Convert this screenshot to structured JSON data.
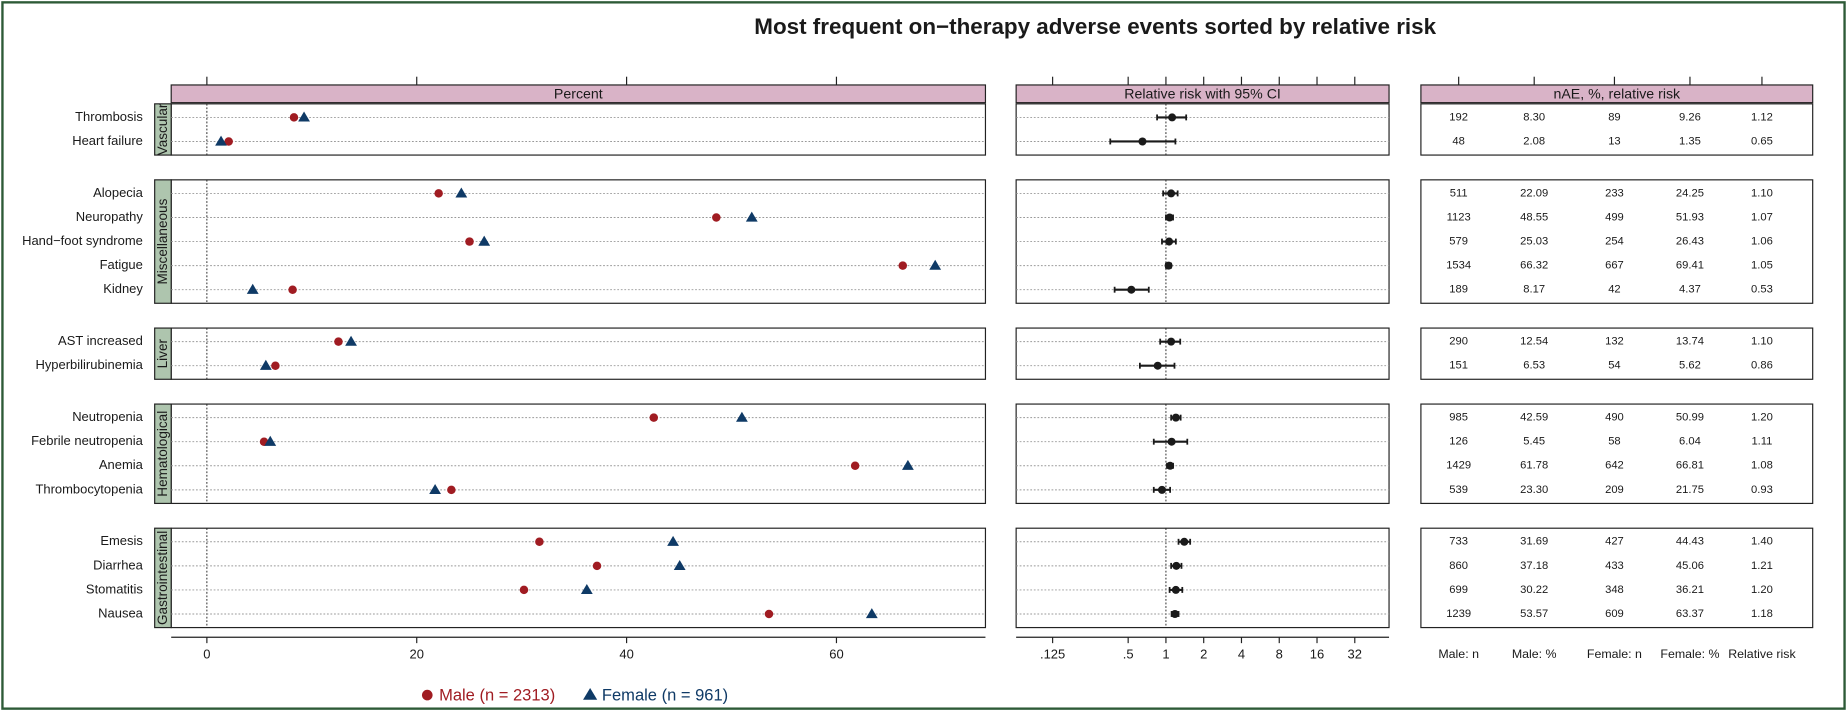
{
  "chart_data": {
    "type": "dot_forest_table",
    "title": "Most frequent on−therapy adverse events sorted by relative risk",
    "groups": [
      {
        "label": "Vascular",
        "categories": [
          "Thrombosis",
          "Heart failure"
        ]
      },
      {
        "label": "Miscellaneous",
        "categories": [
          "Alopecia",
          "Neuropathy",
          "Hand−foot syndrome",
          "Fatigue",
          "Kidney"
        ]
      },
      {
        "label": "Liver",
        "categories": [
          "AST increased",
          "Hyperbilirubinemia"
        ]
      },
      {
        "label": "Hematological",
        "categories": [
          "Neutropenia",
          "Febrile neutropenia",
          "Anemia",
          "Thrombocytopenia"
        ]
      },
      {
        "label": "Gastrointestinal",
        "categories": [
          "Emesis",
          "Diarrhea",
          "Stomatitis",
          "Nausea"
        ]
      }
    ],
    "percent": {
      "title": "Percent",
      "xlim": [
        -3.4,
        74.2
      ],
      "xticks": [
        0,
        20,
        40,
        60
      ],
      "reference": 0
    },
    "series": [
      {
        "name": "Male (n = 2313)",
        "color": "#a01c22",
        "marker": "circle",
        "counts": [
          192,
          48,
          511,
          1123,
          579,
          1534,
          189,
          290,
          151,
          985,
          126,
          1429,
          539,
          733,
          860,
          699,
          1239
        ],
        "values": [
          8.3,
          2.08,
          22.09,
          48.55,
          25.03,
          66.32,
          8.17,
          12.54,
          6.53,
          42.59,
          5.45,
          61.78,
          23.3,
          31.69,
          37.18,
          30.22,
          53.57
        ],
        "value_labels": [
          "8.30",
          "2.08",
          "22.09",
          "48.55",
          "25.03",
          "66.32",
          "8.17",
          "12.54",
          "6.53",
          "42.59",
          "5.45",
          "61.78",
          "23.30",
          "31.69",
          "37.18",
          "30.22",
          "53.57"
        ]
      },
      {
        "name": "Female (n = 961)",
        "color": "#0f3a66",
        "marker": "triangle",
        "counts": [
          89,
          13,
          233,
          499,
          254,
          667,
          42,
          132,
          54,
          490,
          58,
          642,
          209,
          427,
          433,
          348,
          609
        ],
        "values": [
          9.26,
          1.35,
          24.25,
          51.93,
          26.43,
          69.41,
          4.37,
          13.74,
          5.62,
          50.99,
          6.04,
          66.81,
          21.75,
          44.43,
          45.06,
          36.21,
          63.37
        ],
        "value_labels": [
          "9.26",
          "1.35",
          "24.25",
          "51.93",
          "26.43",
          "69.41",
          "4.37",
          "13.74",
          "5.62",
          "50.99",
          "6.04",
          "66.81",
          "21.75",
          "44.43",
          "45.06",
          "36.21",
          "63.37"
        ]
      }
    ],
    "relative_risk": {
      "title": "Relative risk with 95% CI",
      "log_scale": true,
      "xlim": [
        0.064,
        60
      ],
      "xticks": [
        {
          "value": 0.125,
          "label": ".125"
        },
        {
          "value": 0.5,
          "label": ".5"
        },
        1,
        2,
        4,
        8,
        16,
        32
      ],
      "reference": 1,
      "color": "#1a1a1a",
      "values": [
        1.12,
        0.65,
        1.1,
        1.07,
        1.06,
        1.05,
        0.53,
        1.1,
        0.86,
        1.2,
        1.11,
        1.08,
        0.93,
        1.4,
        1.21,
        1.2,
        1.18
      ],
      "value_labels": [
        "1.12",
        "0.65",
        "1.10",
        "1.07",
        "1.06",
        "1.05",
        "0.53",
        "1.10",
        "0.86",
        "1.20",
        "1.11",
        "1.08",
        "0.93",
        "1.40",
        "1.21",
        "1.20",
        "1.18"
      ],
      "ci_low": [
        0.85,
        0.36,
        0.95,
        1.0,
        0.93,
        1.0,
        0.39,
        0.9,
        0.62,
        1.1,
        0.8,
        1.02,
        0.8,
        1.26,
        1.1,
        1.07,
        1.11
      ],
      "ci_high": [
        1.45,
        1.19,
        1.24,
        1.14,
        1.2,
        1.1,
        0.73,
        1.3,
        1.17,
        1.31,
        1.48,
        1.14,
        1.08,
        1.56,
        1.33,
        1.35,
        1.26
      ]
    },
    "table": {
      "title": "nAE, %, relative risk",
      "columns": [
        "Male: n",
        "Male: %",
        "Female: n",
        "Female: %",
        "Relative risk"
      ]
    }
  }
}
